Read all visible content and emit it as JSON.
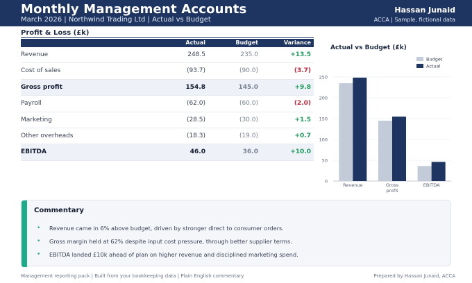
{
  "header": {
    "title": "Monthly Management Accounts",
    "subtitle": "March 2026  |  Northwind Trading Ltd  |  Actual vs Budget",
    "name": "Hassan Junaid",
    "credentials": "ACCA  |  Sample, fictional data"
  },
  "pl": {
    "title": "Profit & Loss  (£k)",
    "columns": {
      "actual": "Actual",
      "budget": "Budget",
      "variance": "Variance"
    },
    "rows": [
      {
        "label": "Revenue",
        "actual": "248.5",
        "budget": "235.0",
        "variance": "+13.5",
        "sign": "pos",
        "total": false
      },
      {
        "label": "Cost of sales",
        "actual": "(93.7)",
        "budget": "(90.0)",
        "variance": "(3.7)",
        "sign": "neg",
        "total": false
      },
      {
        "label": "Gross profit",
        "actual": "154.8",
        "budget": "145.0",
        "variance": "+9.8",
        "sign": "pos",
        "total": true
      },
      {
        "label": "Payroll",
        "actual": "(62.0)",
        "budget": "(60.0)",
        "variance": "(2.0)",
        "sign": "neg",
        "total": false
      },
      {
        "label": "Marketing",
        "actual": "(28.5)",
        "budget": "(30.0)",
        "variance": "+1.5",
        "sign": "pos",
        "total": false
      },
      {
        "label": "Other overheads",
        "actual": "(18.3)",
        "budget": "(19.0)",
        "variance": "+0.7",
        "sign": "pos",
        "total": false
      },
      {
        "label": "EBITDA",
        "actual": "46.0",
        "budget": "36.0",
        "variance": "+10.0",
        "sign": "pos",
        "total": true
      }
    ]
  },
  "chart_data": {
    "type": "bar",
    "title": "Actual vs Budget (£k)",
    "categories": [
      "Revenue",
      "Gross profit",
      "EBITDA"
    ],
    "series": [
      {
        "name": "Budget",
        "values": [
          235.0,
          145.0,
          36.0
        ],
        "color": "#c3cad8"
      },
      {
        "name": "Actual",
        "values": [
          248.5,
          154.8,
          46.0
        ],
        "color": "#1e3561"
      }
    ],
    "ylim": [
      0,
      275
    ],
    "yticks": [
      0,
      50,
      100,
      150,
      200,
      250
    ],
    "legend": "top-right",
    "grid": true
  },
  "commentary": {
    "title": "Commentary",
    "bullets": [
      "Revenue came in 6% above budget, driven by stronger direct to consumer orders.",
      "Gross margin held at 62% despite input cost pressure, through better supplier terms.",
      "EBITDA landed £10k ahead of plan on higher revenue and disciplined marketing spend."
    ]
  },
  "footer": {
    "left": "Management reporting pack  |  Built from your bookkeeping data  |  Plain English commentary",
    "right": "Prepared by Hassan Junaid, ACCA"
  },
  "colors": {
    "navy": "#1e3561",
    "accent": "#1cab8a",
    "positive": "#1f9a5b",
    "negative": "#c0273a"
  }
}
